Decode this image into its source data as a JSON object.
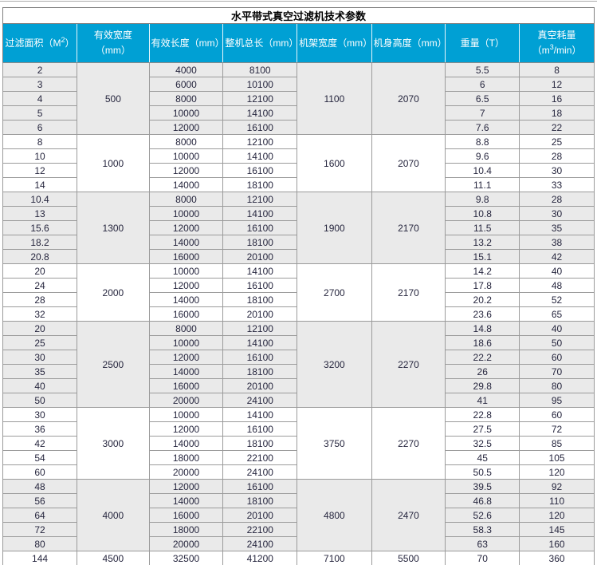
{
  "colors": {
    "header_bg": "#00a0d4",
    "header_text": "#ffffff",
    "shaded_row_bg": "#eaeaea",
    "row_bg": "#ffffff",
    "grid_border": "#9b9b9b",
    "body_text": "#26263e"
  },
  "table": {
    "title": "水平带式真空过滤机技术参数",
    "headers": [
      {
        "pre": "过滤面积（M",
        "sup": "2",
        "post": "）"
      },
      {
        "pre": "有效宽度（mm）"
      },
      {
        "pre": "有效长度（mm）"
      },
      {
        "pre": "整机总长（mm）"
      },
      {
        "pre": "机架宽度（mm）"
      },
      {
        "pre": "机身高度（mm）"
      },
      {
        "pre": "重量（T）"
      },
      {
        "pre": "真空耗量（m",
        "sup": "3",
        "post": "/min）"
      }
    ],
    "groups": [
      {
        "width": "500",
        "frame_width": "1100",
        "body_height": "2070",
        "shaded": true,
        "rows": [
          {
            "area": "2",
            "length": "4000",
            "total_length": "8100",
            "weight": "5.5",
            "vacuum": "8"
          },
          {
            "area": "3",
            "length": "6000",
            "total_length": "10100",
            "weight": "6",
            "vacuum": "12"
          },
          {
            "area": "4",
            "length": "8000",
            "total_length": "12100",
            "weight": "6.5",
            "vacuum": "16"
          },
          {
            "area": "5",
            "length": "10000",
            "total_length": "14100",
            "weight": "7",
            "vacuum": "18"
          },
          {
            "area": "6",
            "length": "12000",
            "total_length": "16100",
            "weight": "7.6",
            "vacuum": "22"
          }
        ]
      },
      {
        "width": "1000",
        "frame_width": "1600",
        "body_height": "2070",
        "shaded": false,
        "rows": [
          {
            "area": "8",
            "length": "8000",
            "total_length": "12100",
            "weight": "8.8",
            "vacuum": "25"
          },
          {
            "area": "10",
            "length": "10000",
            "total_length": "14100",
            "weight": "9.6",
            "vacuum": "28"
          },
          {
            "area": "12",
            "length": "12000",
            "total_length": "16100",
            "weight": "10.4",
            "vacuum": "30"
          },
          {
            "area": "14",
            "length": "14000",
            "total_length": "18100",
            "weight": "11.1",
            "vacuum": "33"
          }
        ]
      },
      {
        "width": "1300",
        "frame_width": "1900",
        "body_height": "2170",
        "shaded": true,
        "rows": [
          {
            "area": "10.4",
            "length": "8000",
            "total_length": "12100",
            "weight": "9.8",
            "vacuum": "28"
          },
          {
            "area": "13",
            "length": "10000",
            "total_length": "14100",
            "weight": "10.8",
            "vacuum": "30"
          },
          {
            "area": "15.6",
            "length": "12000",
            "total_length": "16100",
            "weight": "11.5",
            "vacuum": "35"
          },
          {
            "area": "18.2",
            "length": "14000",
            "total_length": "18100",
            "weight": "13.2",
            "vacuum": "38"
          },
          {
            "area": "20.8",
            "length": "16000",
            "total_length": "20100",
            "weight": "15.1",
            "vacuum": "42"
          }
        ]
      },
      {
        "width": "2000",
        "frame_width": "2700",
        "body_height": "2170",
        "shaded": false,
        "rows": [
          {
            "area": "20",
            "length": "10000",
            "total_length": "14100",
            "weight": "14.2",
            "vacuum": "40"
          },
          {
            "area": "24",
            "length": "12000",
            "total_length": "16100",
            "weight": "17.8",
            "vacuum": "48"
          },
          {
            "area": "28",
            "length": "14000",
            "total_length": "18100",
            "weight": "20.2",
            "vacuum": "52"
          },
          {
            "area": "32",
            "length": "16000",
            "total_length": "20100",
            "weight": "23.6",
            "vacuum": "65"
          }
        ]
      },
      {
        "width": "2500",
        "frame_width": "3200",
        "body_height": "2270",
        "shaded": true,
        "rows": [
          {
            "area": "20",
            "length": "8000",
            "total_length": "12100",
            "weight": "14.8",
            "vacuum": "40"
          },
          {
            "area": "25",
            "length": "10000",
            "total_length": "14100",
            "weight": "18.6",
            "vacuum": "50"
          },
          {
            "area": "30",
            "length": "12000",
            "total_length": "16100",
            "weight": "22.2",
            "vacuum": "60"
          },
          {
            "area": "35",
            "length": "14000",
            "total_length": "18100",
            "weight": "26",
            "vacuum": "70"
          },
          {
            "area": "40",
            "length": "16000",
            "total_length": "20100",
            "weight": "29.8",
            "vacuum": "80"
          },
          {
            "area": "50",
            "length": "20000",
            "total_length": "24100",
            "weight": "41",
            "vacuum": "95"
          }
        ]
      },
      {
        "width": "3000",
        "frame_width": "3750",
        "body_height": "2270",
        "shaded": false,
        "rows": [
          {
            "area": "30",
            "length": "10000",
            "total_length": "14100",
            "weight": "22.8",
            "vacuum": "60"
          },
          {
            "area": "36",
            "length": "12000",
            "total_length": "16100",
            "weight": "27.5",
            "vacuum": "72"
          },
          {
            "area": "42",
            "length": "14000",
            "total_length": "18100",
            "weight": "32.5",
            "vacuum": "85"
          },
          {
            "area": "54",
            "length": "18000",
            "total_length": "22100",
            "weight": "45",
            "vacuum": "105"
          },
          {
            "area": "60",
            "length": "20000",
            "total_length": "24100",
            "weight": "50.5",
            "vacuum": "120"
          }
        ]
      },
      {
        "width": "4000",
        "frame_width": "4800",
        "body_height": "2470",
        "shaded": true,
        "rows": [
          {
            "area": "48",
            "length": "12000",
            "total_length": "16100",
            "weight": "39.5",
            "vacuum": "92"
          },
          {
            "area": "56",
            "length": "14000",
            "total_length": "18100",
            "weight": "46.8",
            "vacuum": "110"
          },
          {
            "area": "64",
            "length": "16000",
            "total_length": "20100",
            "weight": "52.6",
            "vacuum": "120"
          },
          {
            "area": "72",
            "length": "18000",
            "total_length": "22100",
            "weight": "58.3",
            "vacuum": "145"
          },
          {
            "area": "80",
            "length": "20000",
            "total_length": "24100",
            "weight": "63",
            "vacuum": "160"
          }
        ]
      },
      {
        "width": "4500",
        "frame_width": "7100",
        "body_height": "5500",
        "shaded": false,
        "rows": [
          {
            "area": "144",
            "length": "32500",
            "total_length": "41200",
            "weight": "70",
            "vacuum": "360"
          }
        ]
      }
    ]
  }
}
